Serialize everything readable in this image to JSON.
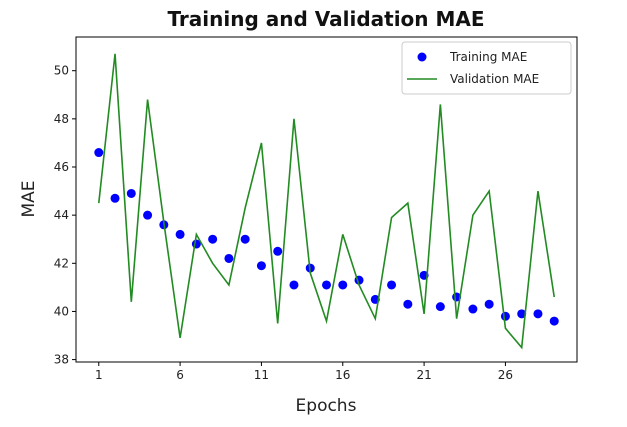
{
  "chart_data": {
    "type": "line",
    "title": "Training and Validation MAE",
    "xlabel": "Epochs",
    "ylabel": "MAE",
    "xlim": [
      -0.4,
      30.4
    ],
    "ylim": [
      37.9,
      51.4
    ],
    "xticks": [
      1,
      6,
      11,
      16,
      21,
      26
    ],
    "yticks": [
      38,
      40,
      42,
      44,
      46,
      48,
      50
    ],
    "grid": false,
    "legend_position": "top-right",
    "series": [
      {
        "name": "Training MAE",
        "style": "points",
        "color": "#0000ff",
        "x": [
          1,
          2,
          3,
          4,
          5,
          6,
          7,
          8,
          9,
          10,
          11,
          12,
          13,
          14,
          15,
          16,
          17,
          18,
          19,
          20,
          21,
          22,
          23,
          24,
          25,
          26,
          27,
          28,
          29
        ],
        "values": [
          46.6,
          44.7,
          44.9,
          44.0,
          43.6,
          43.2,
          42.8,
          43.0,
          42.2,
          43.0,
          41.9,
          42.5,
          41.1,
          41.8,
          41.1,
          41.1,
          41.3,
          40.5,
          41.1,
          40.3,
          41.5,
          40.2,
          40.6,
          40.1,
          40.3,
          39.8,
          39.9,
          39.9,
          39.6
        ]
      },
      {
        "name": "Validation MAE",
        "style": "line",
        "color": "#228b22",
        "x": [
          1,
          2,
          3,
          4,
          5,
          6,
          7,
          8,
          9,
          10,
          11,
          12,
          13,
          14,
          15,
          16,
          17,
          18,
          19,
          20,
          21,
          22,
          23,
          24,
          25,
          26,
          27,
          28,
          29
        ],
        "values": [
          44.5,
          50.7,
          40.4,
          48.8,
          43.7,
          38.9,
          43.2,
          42.0,
          41.1,
          44.3,
          47.0,
          39.5,
          48.0,
          41.6,
          39.6,
          43.2,
          41.1,
          39.7,
          43.9,
          44.5,
          39.9,
          48.6,
          39.7,
          44.0,
          45.0,
          39.3,
          38.5,
          45.0,
          40.6
        ]
      }
    ]
  }
}
